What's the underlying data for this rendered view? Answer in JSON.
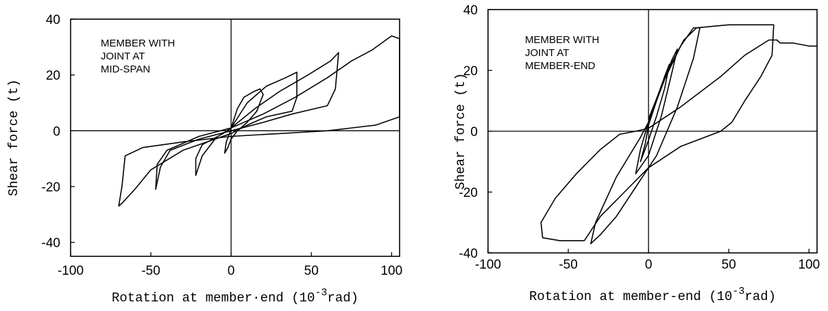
{
  "chart_data": [
    {
      "type": "line",
      "title": "",
      "annotation": [
        "MEMBER WITH",
        "JOINT AT",
        "MID-SPAN"
      ],
      "xlabel": "Rotation at member-end (10^-3 rad)",
      "xlabel_parts": [
        "Rotation at member·end (10",
        "-3",
        "rad)"
      ],
      "ylabel": "Shear force (t)",
      "xlim": [
        -100,
        105
      ],
      "ylim": [
        -45,
        40
      ],
      "xticks": [
        -100,
        -50,
        0,
        50,
        100
      ],
      "yticks": [
        -40,
        -20,
        0,
        20,
        40
      ],
      "grid": false,
      "series": [
        {
          "points": [
            [
              0,
              1
            ],
            [
              4,
              8
            ],
            [
              8,
              12
            ],
            [
              14,
              14
            ],
            [
              18,
              15
            ],
            [
              20,
              13
            ],
            [
              16,
              7
            ],
            [
              10,
              3
            ],
            [
              4,
              0
            ],
            [
              0,
              -3
            ],
            [
              -2,
              -6
            ],
            [
              -4,
              -8
            ],
            [
              -3,
              -4
            ],
            [
              -1,
              -1
            ],
            [
              0,
              1
            ]
          ]
        },
        {
          "points": [
            [
              0,
              1
            ],
            [
              10,
              10
            ],
            [
              22,
              16
            ],
            [
              34,
              19
            ],
            [
              41,
              21
            ],
            [
              41,
              12
            ],
            [
              38,
              7
            ],
            [
              22,
              5
            ],
            [
              10,
              2
            ],
            [
              0,
              -1
            ],
            [
              -10,
              -3
            ],
            [
              -18,
              -9
            ],
            [
              -22,
              -16
            ],
            [
              -22,
              -10
            ],
            [
              -18,
              -5
            ],
            [
              -5,
              -1
            ],
            [
              0,
              1
            ]
          ]
        },
        {
          "points": [
            [
              0,
              1
            ],
            [
              15,
              8
            ],
            [
              30,
              14
            ],
            [
              48,
              20
            ],
            [
              62,
              25
            ],
            [
              67,
              28
            ],
            [
              65,
              15
            ],
            [
              60,
              9
            ],
            [
              38,
              6
            ],
            [
              20,
              3
            ],
            [
              0,
              0
            ],
            [
              -20,
              -3
            ],
            [
              -38,
              -7
            ],
            [
              -44,
              -13
            ],
            [
              -47,
              -21
            ],
            [
              -46,
              -12
            ],
            [
              -40,
              -7
            ],
            [
              -20,
              -2
            ],
            [
              0,
              1
            ]
          ]
        },
        {
          "points": [
            [
              0,
              1
            ],
            [
              20,
              6
            ],
            [
              40,
              12
            ],
            [
              60,
              19
            ],
            [
              75,
              25
            ],
            [
              88,
              29
            ],
            [
              100,
              34
            ],
            [
              105,
              33
            ],
            [
              105,
              5
            ],
            [
              90,
              2
            ],
            [
              60,
              0
            ],
            [
              30,
              -1
            ],
            [
              0,
              -2
            ],
            [
              -30,
              -4
            ],
            [
              -55,
              -6
            ],
            [
              -66,
              -9
            ],
            [
              -68,
              -20
            ],
            [
              -70,
              -27
            ],
            [
              -68,
              -26
            ],
            [
              -60,
              -21
            ],
            [
              -50,
              -14
            ],
            [
              -30,
              -7
            ],
            [
              -10,
              -3
            ],
            [
              0,
              -1
            ]
          ]
        }
      ]
    },
    {
      "type": "line",
      "title": "",
      "annotation": [
        "MEMBER WITH",
        "JOINT AT",
        "MEMBER-END"
      ],
      "xlabel": "Rotation at member-end (10^-3 rad)",
      "xlabel_parts": [
        "Rotation at member-end (10",
        "-3",
        "rad)"
      ],
      "ylabel": "Shear force (t)",
      "xlim": [
        -100,
        105
      ],
      "ylim": [
        -40,
        40
      ],
      "xticks": [
        -100,
        -50,
        0,
        50,
        100
      ],
      "yticks": [
        -40,
        -20,
        0,
        20,
        40
      ],
      "grid": false,
      "series": [
        {
          "points": [
            [
              0,
              2
            ],
            [
              5,
              10
            ],
            [
              10,
              18
            ],
            [
              13,
              22
            ],
            [
              10,
              14
            ],
            [
              5,
              5
            ],
            [
              0,
              -3
            ],
            [
              -5,
              -10
            ],
            [
              -2,
              -4
            ],
            [
              0,
              2
            ]
          ]
        },
        {
          "points": [
            [
              0,
              3
            ],
            [
              8,
              15
            ],
            [
              15,
              24
            ],
            [
              18,
              27
            ],
            [
              14,
              18
            ],
            [
              8,
              5
            ],
            [
              0,
              -8
            ],
            [
              -8,
              -14
            ],
            [
              -5,
              -6
            ],
            [
              0,
              3
            ]
          ]
        },
        {
          "points": [
            [
              0,
              3
            ],
            [
              10,
              17
            ],
            [
              20,
              28
            ],
            [
              28,
              34
            ],
            [
              32,
              34
            ],
            [
              28,
              24
            ],
            [
              18,
              8
            ],
            [
              5,
              -8
            ],
            [
              -10,
              -20
            ],
            [
              -20,
              -28
            ],
            [
              -30,
              -34
            ],
            [
              -36,
              -37
            ],
            [
              -33,
              -30
            ],
            [
              -20,
              -15
            ],
            [
              -5,
              -2
            ],
            [
              0,
              3
            ]
          ]
        },
        {
          "points": [
            [
              0,
              4
            ],
            [
              12,
              20
            ],
            [
              22,
              30
            ],
            [
              30,
              34
            ],
            [
              50,
              35
            ],
            [
              72,
              35
            ],
            [
              78,
              35
            ],
            [
              77,
              25
            ],
            [
              70,
              18
            ],
            [
              60,
              10
            ],
            [
              52,
              3
            ],
            [
              45,
              0
            ],
            [
              20,
              -5
            ],
            [
              0,
              -12
            ],
            [
              -15,
              -20
            ],
            [
              -30,
              -28
            ],
            [
              -35,
              -32
            ],
            [
              -40,
              -36
            ]
          ]
        },
        {
          "points": [
            [
              -40,
              -36
            ],
            [
              -55,
              -36
            ],
            [
              -66,
              -35
            ],
            [
              -67,
              -30
            ],
            [
              -58,
              -22
            ],
            [
              -45,
              -14
            ],
            [
              -30,
              -6
            ],
            [
              -18,
              -1
            ],
            [
              -8,
              0
            ],
            [
              0,
              1
            ],
            [
              20,
              8
            ],
            [
              45,
              18
            ],
            [
              60,
              25
            ],
            [
              75,
              30
            ],
            [
              80,
              30
            ],
            [
              82,
              29
            ],
            [
              90,
              29
            ],
            [
              100,
              28
            ],
            [
              105,
              28
            ]
          ]
        }
      ]
    }
  ]
}
